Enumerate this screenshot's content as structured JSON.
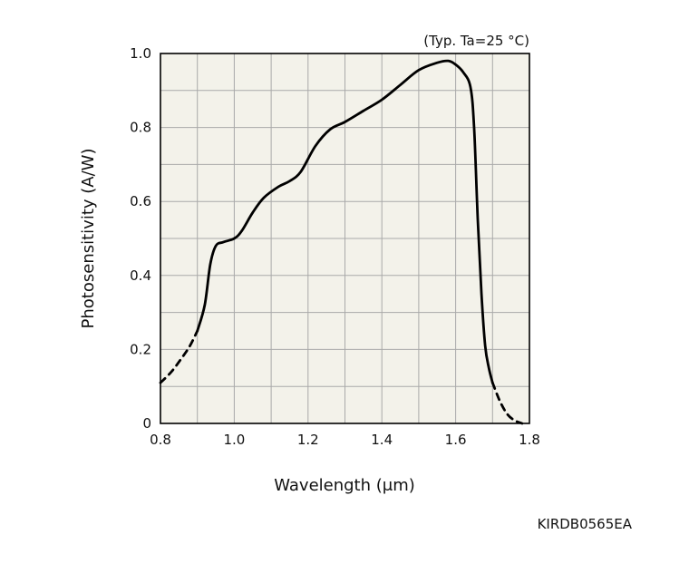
{
  "chart_data": {
    "type": "line",
    "title": "",
    "condition_note": "(Typ. Ta=25 °C)",
    "xlabel": "Wavelength (μm)",
    "ylabel": "Photosensitivity (A/W)",
    "xlim": [
      0.8,
      1.8
    ],
    "ylim": [
      0,
      1.0
    ],
    "x_ticks": [
      "0.8",
      "1.0",
      "1.2",
      "1.4",
      "1.6",
      "1.8"
    ],
    "y_ticks": [
      "0",
      "0.2",
      "0.4",
      "0.6",
      "0.8",
      "1.0"
    ],
    "grid": true,
    "colors": {
      "plot_bg": "#f3f2ea",
      "grid": "#a9a9a9",
      "line": "#000000"
    },
    "series": [
      {
        "style": "solid",
        "x": [
          0.9,
          0.92,
          0.935,
          0.95,
          0.97,
          1.0,
          1.02,
          1.05,
          1.08,
          1.12,
          1.15,
          1.18,
          1.22,
          1.26,
          1.3,
          1.35,
          1.4,
          1.45,
          1.5,
          1.55,
          1.58,
          1.6,
          1.62,
          1.64,
          1.65,
          1.66,
          1.67,
          1.68,
          1.69,
          1.7
        ],
        "y": [
          0.25,
          0.32,
          0.43,
          0.48,
          0.49,
          0.5,
          0.52,
          0.57,
          0.61,
          0.64,
          0.655,
          0.68,
          0.75,
          0.795,
          0.815,
          0.845,
          0.875,
          0.915,
          0.955,
          0.975,
          0.98,
          0.97,
          0.95,
          0.91,
          0.8,
          0.55,
          0.35,
          0.21,
          0.15,
          0.11
        ]
      },
      {
        "style": "dashed",
        "x": [
          0.8,
          0.83,
          0.86,
          0.88,
          0.9
        ],
        "y": [
          0.11,
          0.14,
          0.18,
          0.21,
          0.25
        ]
      },
      {
        "style": "dashed",
        "x": [
          1.7,
          1.72,
          1.74,
          1.76,
          1.78
        ],
        "y": [
          0.11,
          0.06,
          0.025,
          0.008,
          0.0
        ]
      }
    ]
  },
  "footer_code": "KIRDB0565EA"
}
